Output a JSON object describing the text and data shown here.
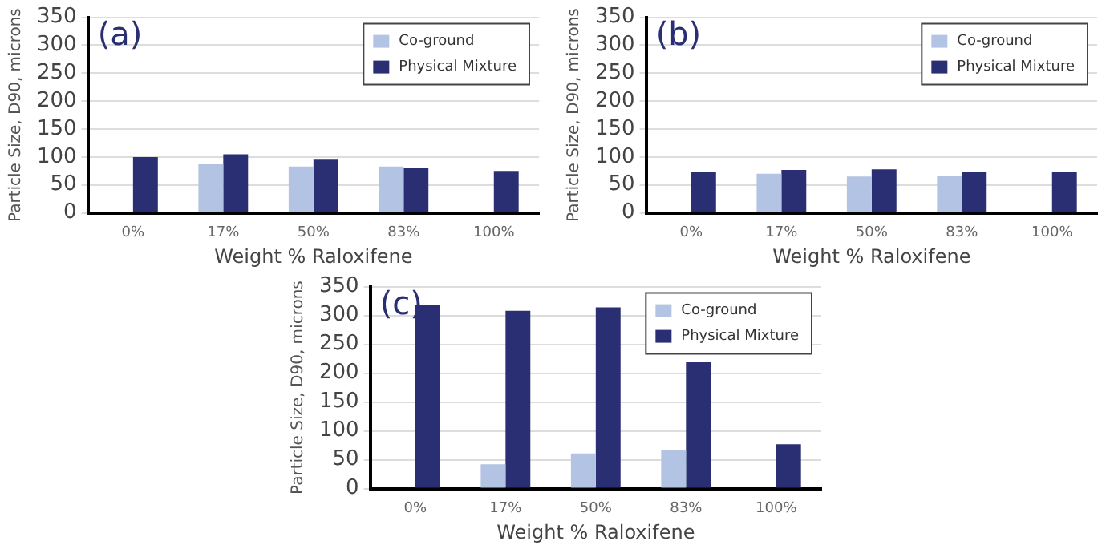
{
  "chart_data": [
    {
      "type": "bar",
      "annotations": [
        "(a)"
      ],
      "categories": [
        "0%",
        "17%",
        "50%",
        "83%",
        "100%"
      ],
      "xlabel": "Weight % Raloxifene",
      "ylabel": "Particle Size, D90, microns",
      "ylim": [
        0,
        350
      ],
      "yticks": [
        0,
        50,
        100,
        150,
        200,
        250,
        300,
        350
      ],
      "grid": "y",
      "legend": "top right",
      "series": [
        {
          "name": "Co-ground",
          "color": "#b3c3e3",
          "values": [
            null,
            87,
            83,
            83,
            null
          ]
        },
        {
          "name": "Physical Mixture",
          "color": "#2a2f73",
          "values": [
            100,
            105,
            95,
            80,
            75
          ]
        }
      ]
    },
    {
      "type": "bar",
      "annotations": [
        "(b)"
      ],
      "categories": [
        "0%",
        "17%",
        "50%",
        "83%",
        "100%"
      ],
      "xlabel": "Weight % Raloxifene",
      "ylabel": "Particle Size, D90, microns",
      "ylim": [
        0,
        350
      ],
      "yticks": [
        0,
        50,
        100,
        150,
        200,
        250,
        300,
        350
      ],
      "grid": "y",
      "legend": "top right",
      "series": [
        {
          "name": "Co-ground",
          "color": "#b3c3e3",
          "values": [
            null,
            70,
            65,
            67,
            null
          ]
        },
        {
          "name": "Physical Mixture",
          "color": "#2a2f73",
          "values": [
            74,
            77,
            78,
            73,
            74
          ]
        }
      ]
    },
    {
      "type": "bar",
      "annotations": [
        "(c)"
      ],
      "categories": [
        "0%",
        "17%",
        "50%",
        "83%",
        "100%"
      ],
      "xlabel": "Weight % Raloxifene",
      "ylabel": "Particle Size, D90, microns",
      "ylim": [
        0,
        350
      ],
      "yticks": [
        0,
        50,
        100,
        150,
        200,
        250,
        300,
        350
      ],
      "grid": "y",
      "legend": "top right",
      "series": [
        {
          "name": "Co-ground",
          "color": "#b3c3e3",
          "values": [
            null,
            42,
            61,
            66,
            null
          ]
        },
        {
          "name": "Physical Mixture",
          "color": "#2a2f73",
          "values": [
            318,
            308,
            314,
            219,
            77
          ]
        }
      ]
    }
  ]
}
